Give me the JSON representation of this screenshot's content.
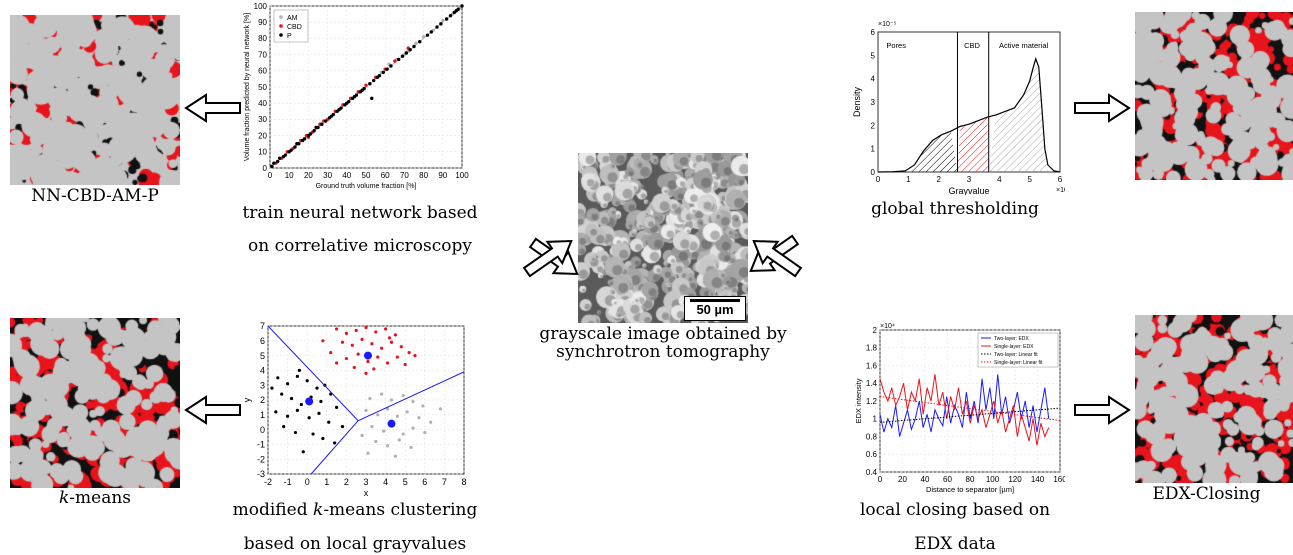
{
  "captions": {
    "nn": "NN-CBD-AM-P",
    "train_1": "train neural network based",
    "train_2": "on correlative microscopy",
    "kmeans_result": "-means",
    "kmeans_italic": "k",
    "kmeans_method_prefix": "modified ",
    "kmeans_method_k": "k",
    "kmeans_method_suffix": "-means clustering",
    "kmeans_method_2": "based on local grayvalues",
    "center_1": "grayscale image obtained by",
    "center_2": "synchrotron tomography",
    "scale_bar": "50 µm",
    "global": "global thresholding",
    "local_1": "local closing based on",
    "local_2": "EDX data",
    "edx": "EDX-Closing"
  },
  "colors": {
    "cbd_red": "#e8141c",
    "pore_black": "#111111",
    "am_gray": "#c4c4c4"
  },
  "chart_data": [
    {
      "type": "scatter",
      "xlabel": "Ground truth volume fraction [%]",
      "ylabel": "Volume fraction predicted by neural network [%]",
      "xlim": [
        0,
        100
      ],
      "ylim": [
        0,
        100
      ],
      "xticks": [
        "0",
        "10",
        "20",
        "30",
        "40",
        "50",
        "60",
        "70",
        "80",
        "90",
        "100"
      ],
      "yticks": [
        "0",
        "10",
        "20",
        "30",
        "40",
        "50",
        "60",
        "70",
        "80",
        "90",
        "100"
      ],
      "grid": true,
      "legend_position": "top-left",
      "series": [
        {
          "name": "AM",
          "color": "#b0b0b0",
          "points": [
            [
              62,
              64
            ],
            [
              58,
              59
            ],
            [
              70,
              70
            ],
            [
              76,
              77
            ],
            [
              80,
              81
            ],
            [
              85,
              85
            ],
            [
              90,
              91
            ],
            [
              95,
              95
            ],
            [
              99,
              99
            ],
            [
              66,
              67
            ],
            [
              72,
              72
            ]
          ]
        },
        {
          "name": "CBD",
          "color": "#e8141c",
          "points": [
            [
              3,
              3
            ],
            [
              6,
              6
            ],
            [
              9,
              10
            ],
            [
              12,
              12
            ],
            [
              16,
              17
            ],
            [
              19,
              20
            ],
            [
              22,
              22
            ],
            [
              26,
              27
            ],
            [
              30,
              30
            ],
            [
              34,
              35
            ],
            [
              38,
              39
            ],
            [
              42,
              43
            ],
            [
              46,
              47
            ],
            [
              50,
              51
            ],
            [
              55,
              56
            ],
            [
              60,
              61
            ],
            [
              65,
              66
            ],
            [
              72,
              74
            ],
            [
              20,
              19
            ],
            [
              28,
              29
            ]
          ]
        },
        {
          "name": "P",
          "color": "#000000",
          "points": [
            [
              1,
              1
            ],
            [
              2,
              3
            ],
            [
              4,
              4
            ],
            [
              5,
              6
            ],
            [
              7,
              7
            ],
            [
              8,
              8
            ],
            [
              10,
              10
            ],
            [
              11,
              11
            ],
            [
              13,
              13
            ],
            [
              14,
              15
            ],
            [
              15,
              15
            ],
            [
              17,
              17
            ],
            [
              18,
              18
            ],
            [
              20,
              20
            ],
            [
              21,
              21
            ],
            [
              23,
              23
            ],
            [
              24,
              25
            ],
            [
              25,
              25
            ],
            [
              27,
              27
            ],
            [
              29,
              29
            ],
            [
              31,
              31
            ],
            [
              32,
              32
            ],
            [
              33,
              33
            ],
            [
              35,
              35
            ],
            [
              36,
              36
            ],
            [
              37,
              37
            ],
            [
              39,
              39
            ],
            [
              40,
              40
            ],
            [
              41,
              41
            ],
            [
              43,
              43
            ],
            [
              44,
              44
            ],
            [
              45,
              45
            ],
            [
              47,
              47
            ],
            [
              48,
              48
            ],
            [
              49,
              49
            ],
            [
              52,
              52
            ],
            [
              53,
              43
            ],
            [
              54,
              54
            ],
            [
              56,
              56
            ],
            [
              57,
              57
            ],
            [
              59,
              59
            ],
            [
              61,
              61
            ],
            [
              63,
              63
            ],
            [
              67,
              67
            ],
            [
              69,
              69
            ],
            [
              71,
              71
            ],
            [
              73,
              73
            ],
            [
              75,
              75
            ],
            [
              78,
              78
            ],
            [
              82,
              82
            ],
            [
              84,
              84
            ],
            [
              87,
              87
            ],
            [
              89,
              89
            ],
            [
              92,
              92
            ],
            [
              94,
              94
            ],
            [
              96,
              96
            ],
            [
              97,
              97
            ],
            [
              98,
              98
            ],
            [
              100,
              100
            ]
          ]
        }
      ]
    },
    {
      "type": "area",
      "xlabel": "Grayvalue",
      "ylabel": "Density",
      "x_exponent": "×10⁴",
      "y_exponent": "×10⁻⁵",
      "xlim": [
        0,
        6
      ],
      "ylim": [
        0,
        6
      ],
      "xticks": [
        "0",
        "1",
        "2",
        "3",
        "4",
        "5",
        "6"
      ],
      "yticks": [
        "0",
        "1",
        "2",
        "3",
        "4",
        "5",
        "6"
      ],
      "thresholds": [
        2.62,
        3.65
      ],
      "region_labels": [
        "Pores",
        "CBD",
        "Active material"
      ],
      "x": [
        0,
        0.5,
        0.9,
        1.2,
        1.5,
        1.8,
        2.1,
        2.4,
        2.7,
        3.0,
        3.3,
        3.6,
        3.9,
        4.2,
        4.5,
        4.8,
        5.0,
        5.1,
        5.2,
        5.3,
        5.4,
        5.5,
        5.6,
        5.8,
        6.0
      ],
      "y": [
        0,
        0.01,
        0.05,
        0.3,
        0.9,
        1.35,
        1.6,
        1.75,
        1.95,
        2.05,
        2.2,
        2.35,
        2.45,
        2.6,
        2.75,
        3.3,
        3.9,
        4.4,
        4.85,
        4.5,
        2.8,
        1.0,
        0.3,
        0.05,
        0
      ]
    },
    {
      "type": "scatter",
      "xlabel": "x",
      "ylabel": "y",
      "xlim": [
        -2,
        8
      ],
      "ylim": [
        -3,
        7
      ],
      "xticks": [
        "-2",
        "-1",
        "0",
        "1",
        "2",
        "3",
        "4",
        "5",
        "6",
        "7",
        "8"
      ],
      "yticks": [
        "-3",
        "-2",
        "-1",
        "0",
        "1",
        "2",
        "3",
        "4",
        "5",
        "6",
        "7"
      ],
      "grid": true,
      "series": [
        {
          "name": "",
          "color": "#e8141c",
          "points": [
            [
              1.5,
              6.8
            ],
            [
              2,
              6.5
            ],
            [
              2.5,
              6.7
            ],
            [
              3,
              6.9
            ],
            [
              3.5,
              6.6
            ],
            [
              4,
              6.8
            ],
            [
              4.5,
              6.4
            ],
            [
              1.8,
              5.9
            ],
            [
              2.3,
              5.7
            ],
            [
              2.8,
              6.1
            ],
            [
              3.3,
              5.8
            ],
            [
              3.8,
              5.5
            ],
            [
              4.3,
              5.9
            ],
            [
              4.8,
              5.6
            ],
            [
              5.2,
              5.2
            ],
            [
              1.2,
              5.2
            ],
            [
              2,
              4.8
            ],
            [
              2.6,
              5.1
            ],
            [
              3.1,
              4.6
            ],
            [
              3.6,
              4.9
            ],
            [
              4.1,
              4.5
            ],
            [
              4.6,
              4.9
            ],
            [
              5.0,
              4.4
            ],
            [
              2.4,
              4.2
            ],
            [
              3.4,
              4.1
            ],
            [
              1.5,
              4.5
            ],
            [
              5.5,
              5.0
            ],
            [
              0.8,
              6.0
            ],
            [
              4.2,
              6.2
            ],
            [
              3.0,
              3.8
            ]
          ]
        },
        {
          "name": "",
          "color": "#000000",
          "points": [
            [
              -1.5,
              3.5
            ],
            [
              -1,
              3.1
            ],
            [
              -0.5,
              3.6
            ],
            [
              0,
              3.3
            ],
            [
              0.5,
              2.8
            ],
            [
              -1.3,
              2.4
            ],
            [
              -0.8,
              2.1
            ],
            [
              -0.3,
              1.7
            ],
            [
              0.2,
              2.2
            ],
            [
              0.7,
              1.9
            ],
            [
              1.2,
              2.4
            ],
            [
              -1.6,
              1.2
            ],
            [
              -1.0,
              0.9
            ],
            [
              -0.5,
              1.3
            ],
            [
              0.1,
              0.8
            ],
            [
              0.6,
              1.1
            ],
            [
              1.1,
              0.5
            ],
            [
              -1.2,
              0.2
            ],
            [
              -0.6,
              -0.2
            ],
            [
              0.3,
              -0.3
            ],
            [
              0.8,
              -0.6
            ],
            [
              -0.2,
              -1.5
            ],
            [
              1.5,
              1.5
            ],
            [
              1.8,
              0.2
            ],
            [
              -1.8,
              2.8
            ],
            [
              0.9,
              3.0
            ],
            [
              -0.4,
              4.0
            ],
            [
              1.4,
              -0.9
            ]
          ]
        },
        {
          "name": "",
          "color": "#b0b0b0",
          "points": [
            [
              3.2,
              2.1
            ],
            [
              3.8,
              2.4
            ],
            [
              4.3,
              2.0
            ],
            [
              4.9,
              2.3
            ],
            [
              5.4,
              1.9
            ],
            [
              3.0,
              1.3
            ],
            [
              3.6,
              1.0
            ],
            [
              4.1,
              1.4
            ],
            [
              4.6,
              0.9
            ],
            [
              5.1,
              1.2
            ],
            [
              5.7,
              0.8
            ],
            [
              3.3,
              0.2
            ],
            [
              3.9,
              -0.1
            ],
            [
              4.4,
              0.3
            ],
            [
              4.9,
              -0.3
            ],
            [
              5.4,
              0.1
            ],
            [
              6.0,
              -0.2
            ],
            [
              3.5,
              -0.8
            ],
            [
              4.1,
              -1.1
            ],
            [
              4.7,
              -0.7
            ],
            [
              5.3,
              -1.2
            ],
            [
              6.3,
              0.5
            ],
            [
              6.8,
              1.4
            ],
            [
              2.8,
              -0.4
            ],
            [
              3.1,
              -1.6
            ],
            [
              5.9,
              1.6
            ],
            [
              4.5,
              -1.8
            ]
          ]
        }
      ],
      "centroids": [
        [
          3.1,
          5.0
        ],
        [
          0.1,
          1.9
        ],
        [
          4.3,
          0.4
        ]
      ]
    },
    {
      "type": "line",
      "xlabel": "Distance to separator [µm]",
      "ylabel": "EDX intensity",
      "y_exponent": "×10⁴",
      "xlim": [
        0,
        160
      ],
      "ylim": [
        0.4,
        2
      ],
      "xticks": [
        "0",
        "20",
        "40",
        "60",
        "80",
        "100",
        "120",
        "140",
        "160"
      ],
      "yticks": [
        "0.4",
        "0.6",
        "0.8",
        "1",
        "1.2",
        "1.4",
        "1.6",
        "1.8",
        "2"
      ],
      "grid": true,
      "legend_position": "top-right",
      "series": [
        {
          "name": "Two-layer: EDX",
          "color": "#1a1aff",
          "y": [
            1.05,
            0.85,
            1.0,
            0.9,
            1.15,
            0.8,
            0.95,
            1.1,
            0.88,
            1.0,
            1.2,
            0.9,
            1.05,
            0.85,
            1.1,
            1.0,
            0.92,
            1.25,
            0.95,
            1.15,
            1.05,
            0.9,
            1.3,
            1.0,
            1.2,
            0.95,
            1.45,
            1.1,
            1.35,
            1.0,
            1.5,
            1.05,
            1.25,
            0.95,
            1.1,
            1.3,
            1.0,
            1.2,
            0.9,
            1.15,
            0.85,
            1.1,
            1.35,
            1.0
          ]
        },
        {
          "name": "Single-layer: EDX",
          "color": "#e8141c",
          "y": [
            1.45,
            1.3,
            1.2,
            1.35,
            1.15,
            1.25,
            1.4,
            1.1,
            1.3,
            1.2,
            1.45,
            1.05,
            1.35,
            1.2,
            1.5,
            1.15,
            1.3,
            1.0,
            1.25,
            1.1,
            1.35,
            1.05,
            1.2,
            0.95,
            1.15,
            1.0,
            1.1,
            0.9,
            1.05,
            1.2,
            0.95,
            1.1,
            0.85,
            1.0,
            1.15,
            0.8,
            1.05,
            0.9,
            0.75,
            1.0,
            0.7,
            0.95,
            0.8,
            0.9
          ]
        },
        {
          "name": "Two-layer: Linear fit",
          "color": "#000000",
          "line": [
            [
              0,
              0.96
            ],
            [
              160,
              1.12
            ]
          ]
        },
        {
          "name": "Single-layer: Linear fit",
          "color": "#e8141c",
          "line": [
            [
              0,
              1.25
            ],
            [
              160,
              0.98
            ]
          ]
        }
      ]
    }
  ]
}
